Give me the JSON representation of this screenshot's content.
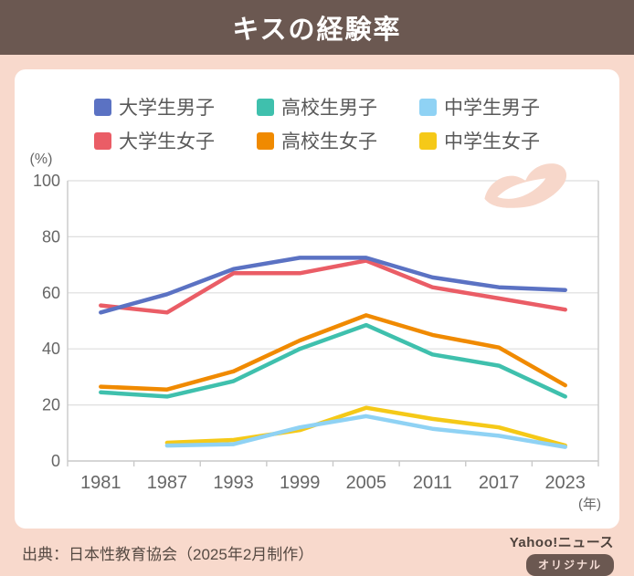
{
  "header": {
    "title": "キスの経験率"
  },
  "y_axis": {
    "unit": "(%)",
    "ticks": [
      0,
      20,
      40,
      60,
      80,
      100
    ]
  },
  "x_axis": {
    "unit": "(年)"
  },
  "chart_data": {
    "type": "line",
    "title": "キスの経験率",
    "categories": [
      "1981",
      "1987",
      "1993",
      "1999",
      "2005",
      "2011",
      "2017",
      "2023"
    ],
    "xlabel": "(年)",
    "ylabel": "(%)",
    "ylim": [
      0,
      100
    ],
    "ytick_interval": 20,
    "grid": true,
    "legend_position": "top",
    "series": [
      {
        "name": "大学生男子",
        "color": "#5b72c3",
        "values": [
          53,
          59.5,
          68.5,
          72.5,
          72.5,
          65.5,
          62,
          61
        ]
      },
      {
        "name": "大学生女子",
        "color": "#ea5d66",
        "values": [
          55.5,
          53,
          67,
          67,
          71.5,
          62,
          58,
          54
        ]
      },
      {
        "name": "高校生男子",
        "color": "#3fc0ad",
        "values": [
          24.5,
          23,
          28.5,
          40,
          48.5,
          38,
          34,
          23
        ]
      },
      {
        "name": "高校生女子",
        "color": "#f08a00",
        "values": [
          26.5,
          25.5,
          32,
          43,
          52,
          45,
          40.5,
          27
        ]
      },
      {
        "name": "中学生男子",
        "color": "#8fd2f4",
        "values": [
          null,
          5.5,
          6,
          12,
          16,
          11.5,
          9,
          5
        ]
      },
      {
        "name": "中学生女子",
        "color": "#f5c918",
        "values": [
          null,
          6.5,
          7.5,
          11,
          19,
          15,
          12,
          5.5
        ]
      }
    ],
    "legend_order": [
      0,
      2,
      4,
      1,
      3,
      5
    ],
    "draw_order": [
      5,
      4,
      3,
      2,
      1,
      0
    ]
  },
  "colors": {
    "header_bg": "#6b5851",
    "page_bg": "#f8d9cc",
    "panel_bg": "#ffffff",
    "gridline": "#dedede",
    "axis_line": "#c9c9c9",
    "lips_icon": "#f7d7ca"
  },
  "footer": {
    "source": "出典：日本性教育協会（2025年2月制作）",
    "brand": "Yahoo!ニュース",
    "badge": "オリジナル"
  }
}
